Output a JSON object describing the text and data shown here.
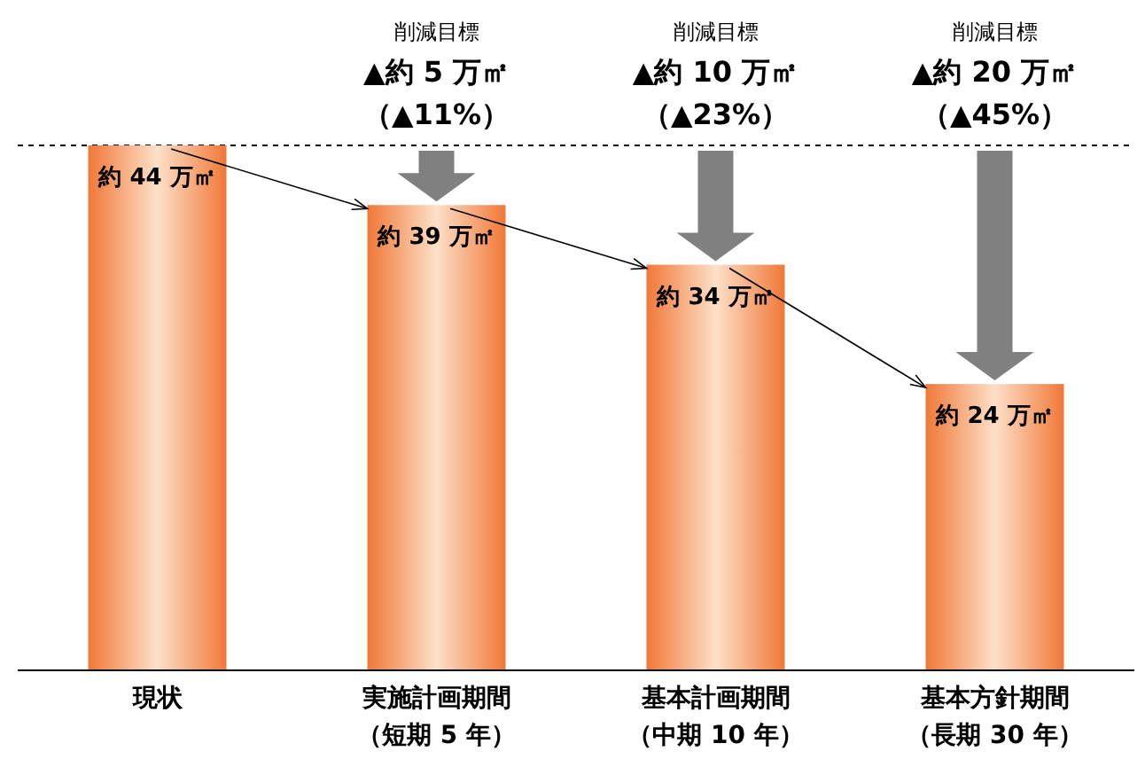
{
  "chart_data": {
    "type": "bar",
    "categories": [
      "現状",
      "実施計画期間（短期 5 年）",
      "基本計画期間（中期 10 年）",
      "基本方針期間（長期 30 年）"
    ],
    "values": [
      44,
      39,
      34,
      24
    ],
    "color": "#f07838",
    "value_labels": [
      "約 44 万㎡",
      "約 39 万㎡",
      "約 34 万㎡",
      "約 24 万㎡"
    ],
    "ref_lines": [
      {
        "axis": "y",
        "value": 44,
        "line_style": "dashed",
        "color": "#000000"
      }
    ],
    "annotations": [
      "削減目標",
      {
        "text": "▲約 5 万㎡",
        "x": "実施計画期間（短期 5 年）",
        "y": 44
      },
      {
        "text": "（▲11%）",
        "x": "実施計画期間（短期 5 年）",
        "y": 44
      },
      "削減目標",
      {
        "text": "▲約 10 万㎡",
        "x": "基本計画期間（中期 10 年）",
        "y": 44
      },
      {
        "text": "（▲23%）",
        "x": "基本計画期間（中期 10 年）",
        "y": 44
      },
      "削減目標",
      {
        "text": "▲約 20 万㎡",
        "x": "基本方針期間（長期 30 年）",
        "y": 44
      },
      {
        "text": "（▲45%）",
        "x": "基本方針期間（長期 30 年）",
        "y": 44
      }
    ]
  }
}
